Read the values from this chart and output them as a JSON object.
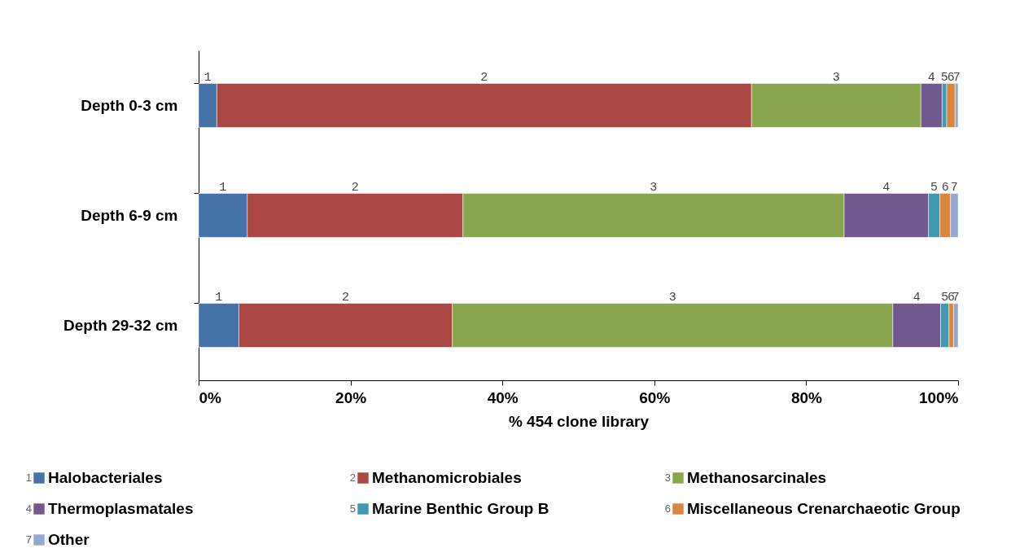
{
  "chart_data": {
    "type": "bar",
    "orientation": "horizontal",
    "stacked": true,
    "xlabel": "% 454 clone library",
    "categories": [
      "Depth 0-3 cm",
      "Depth 6-9 cm",
      "Depth 29-32 cm"
    ],
    "series": [
      {
        "name": "Halobacteriales",
        "color": "#4572a7",
        "values": [
          2.4,
          6.4,
          5.3
        ]
      },
      {
        "name": "Methanomicrobiales",
        "color": "#aa4643",
        "values": [
          70.4,
          28.4,
          28.1
        ]
      },
      {
        "name": "Methanosarcinales",
        "color": "#89a54e",
        "values": [
          22.3,
          50.2,
          58.0
        ]
      },
      {
        "name": "Thermoplasmatales",
        "color": "#71588f",
        "values": [
          2.8,
          11.1,
          6.3
        ]
      },
      {
        "name": "Marine Benthic Group B",
        "color": "#4198af",
        "values": [
          0.6,
          1.5,
          1.1
        ]
      },
      {
        "name": "Miscellaneous Crenarchaeotic Group",
        "color": "#db843d",
        "values": [
          1.1,
          1.4,
          0.6
        ]
      },
      {
        "name": "Other",
        "color": "#93a9cf",
        "values": [
          0.4,
          1.0,
          0.6
        ]
      }
    ],
    "xlim": [
      0,
      100
    ],
    "xticks": [
      {
        "value": 0,
        "label": "0%"
      },
      {
        "value": 20,
        "label": "20%"
      },
      {
        "value": 40,
        "label": "40%"
      },
      {
        "value": 60,
        "label": "60%"
      },
      {
        "value": 80,
        "label": "80%"
      },
      {
        "value": 100,
        "label": "100%"
      }
    ],
    "grid": false,
    "legend": "bottom",
    "annotations": [
      "1",
      "2",
      "3",
      "4",
      "5",
      "6",
      "7",
      "1",
      "2",
      "3",
      "4",
      "5",
      "6",
      "7",
      "1",
      "2",
      "3",
      "4",
      "5",
      "6",
      "7",
      "1",
      "2",
      "3",
      "4",
      "5",
      "6",
      "7"
    ]
  }
}
